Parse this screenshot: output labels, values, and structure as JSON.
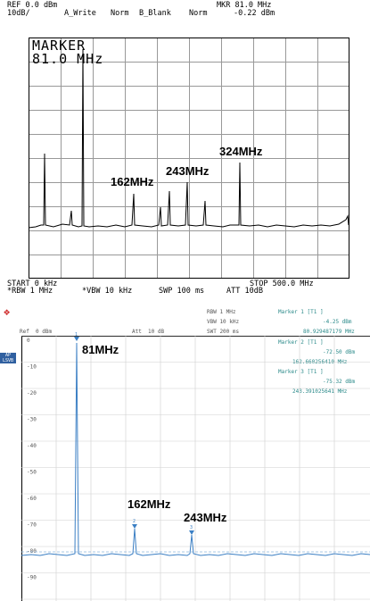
{
  "top": {
    "ref_label": "REF 0.0 dBm",
    "scale_label": "10dB/",
    "trace_a": "A_Write",
    "norm_a": "Norm",
    "trace_b": "B_Blank",
    "norm_b": "Norm",
    "mkr_label": "MKR 81.0 MHz",
    "mkr_level": "-0.22 dBm",
    "marker_title": "MARKER",
    "marker_value": "81.0 MHz",
    "start": "START 0 kHz",
    "stop": "STOP 500.0 MHz",
    "rbw": "*RBW 1 MHz",
    "vbw": "*VBW 10 kHz",
    "swp": "SWP 100 ms",
    "att": "ATT 10dB",
    "annotations": [
      "162MHz",
      "243MHz",
      "324MHz"
    ]
  },
  "bottom": {
    "ref": "Ref  0 dBm",
    "att": "Att  10 dB",
    "rbw": "RBW 1 MHz",
    "vbw": "VBW 10 kHz",
    "swt": "SWT 200 ms",
    "marker1": "Marker 1 [T1 ]",
    "marker1_level": "-4.25 dBm",
    "marker1_freq": "80.929487179 MHz",
    "marker2": "Marker 2 [T1 ]",
    "marker2_level": "-72.50 dBm",
    "marker2_freq": "162.660256410 MHz",
    "marker3": "Marker 3 [T1 ]",
    "marker3_level": "-75.32 dBm",
    "marker3_freq": "243.391025641 MHz",
    "badge": "AP\nLSVB",
    "y_ticks": [
      "0",
      "-10",
      "-20",
      "-30",
      "-40",
      "-50",
      "-60",
      "-70",
      "-80",
      "-90",
      "-100"
    ],
    "annotations": [
      "81MHz",
      "162MHz",
      "243MHz"
    ],
    "marker_ids": [
      "1",
      "2",
      "3"
    ]
  },
  "colors": {
    "trace_top": "#000000",
    "trace_bottom": "#3b7fc4",
    "teal": "#2b8a8a"
  }
}
